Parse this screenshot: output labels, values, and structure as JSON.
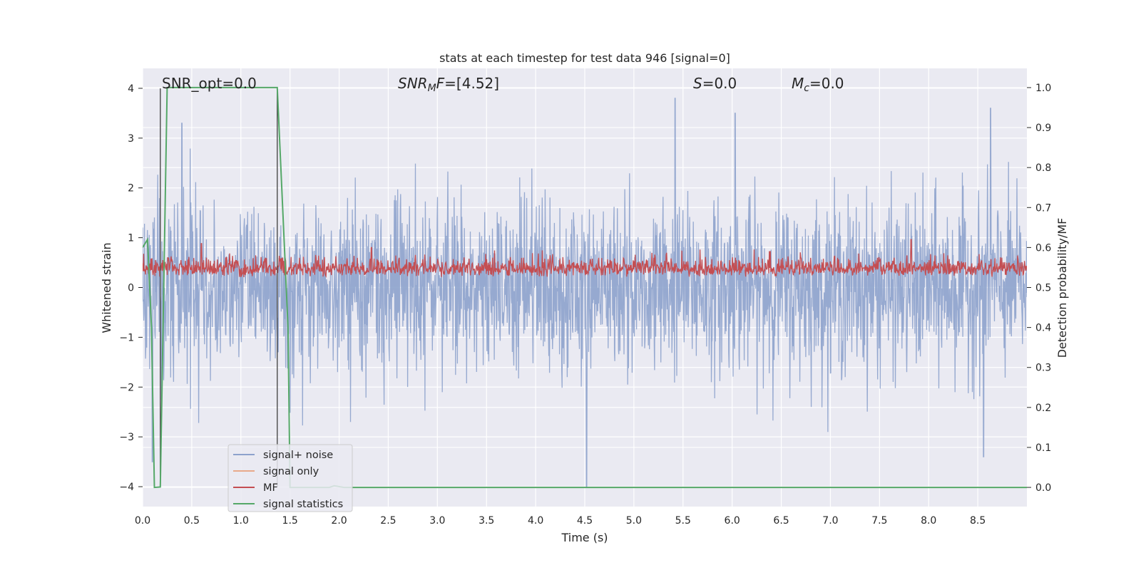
{
  "chart_data": {
    "type": "line",
    "title": "stats at each timestep for test data 946 [signal=0]",
    "xlabel": "Time (s)",
    "ylabel": "Whitened strain",
    "y2label": "Detection probability/MF",
    "xlim": [
      0.0,
      9.0
    ],
    "ylim": [
      -4.4,
      4.4
    ],
    "y2lim": [
      -0.048,
      1.048
    ],
    "grid": true,
    "legend_position": "lower-left",
    "x_ticks": [
      "0.0",
      "0.5",
      "1.0",
      "1.5",
      "2.0",
      "2.5",
      "3.0",
      "3.5",
      "4.0",
      "4.5",
      "5.0",
      "5.5",
      "6.0",
      "6.5",
      "7.0",
      "7.5",
      "8.0",
      "8.5"
    ],
    "y_ticks": [
      "4",
      "3",
      "2",
      "1",
      "0",
      "−1",
      "−2",
      "−3",
      "−4"
    ],
    "y2_ticks": [
      "1.0",
      "0.9",
      "0.8",
      "0.7",
      "0.6",
      "0.5",
      "0.4",
      "0.3",
      "0.2",
      "0.1",
      "0.0"
    ],
    "annotations": {
      "snr_opt": "SNR_opt=0.0",
      "snr_mf_name": "SNR",
      "snr_mf_sub": "M",
      "snr_mf_rest": "F",
      "snr_mf_value": "=[4.52]",
      "s_name": "S",
      "s_value": "=0.0",
      "mc_name": "M",
      "mc_sub": "c",
      "mc_value": "=0.0"
    },
    "markers": {
      "vertical_lines_x": [
        0.18,
        1.37
      ],
      "vertical_line_ymin": -4.0,
      "vertical_line_ymax": 4.0
    },
    "series": [
      {
        "name": "signal+ noise",
        "color": "#8da2cc",
        "axis": "left",
        "style": "noise",
        "description_values": {
          "x_start": 0.0,
          "x_end": 9.0,
          "typical_range": [
            -2.4,
            2.4
          ],
          "peaks": [
            {
              "x": 0.4,
              "y": 3.3
            },
            {
              "x": 4.52,
              "y": -4.0
            },
            {
              "x": 5.42,
              "y": 3.8
            },
            {
              "x": 6.03,
              "y": 3.5
            },
            {
              "x": 8.63,
              "y": 3.6
            },
            {
              "x": 8.56,
              "y": -3.4
            },
            {
              "x": 0.1,
              "y": -3.5
            }
          ]
        }
      },
      {
        "name": "signal only",
        "color": "#e8a98a",
        "axis": "left",
        "values": []
      },
      {
        "name": "MF",
        "color": "#c44e52",
        "axis": "right",
        "style": "noise",
        "description_values": {
          "x_start": 0.0,
          "x_end": 9.0,
          "typical_range": [
            0.51,
            0.58
          ],
          "peaks": [
            {
              "x": 7.82,
              "y": 0.62
            },
            {
              "x": 0.6,
              "y": 0.61
            },
            {
              "x": 2.33,
              "y": 0.6
            }
          ]
        }
      },
      {
        "name": "signal statistics",
        "color": "#55a868",
        "axis": "right",
        "x": [
          0.0,
          0.05,
          0.09,
          0.12,
          0.18,
          0.25,
          1.37,
          1.48,
          1.5,
          1.9,
          1.95,
          2.05,
          9.0
        ],
        "y": [
          0.6,
          0.62,
          0.4,
          0.0,
          0.001,
          1.0,
          1.0,
          0.4,
          0.0,
          0.0,
          0.004,
          0.0,
          0.0
        ]
      }
    ]
  },
  "colors": {
    "plot_background": "#eaeaf2",
    "grid": "#ffffff",
    "marker_line": "#555555"
  }
}
